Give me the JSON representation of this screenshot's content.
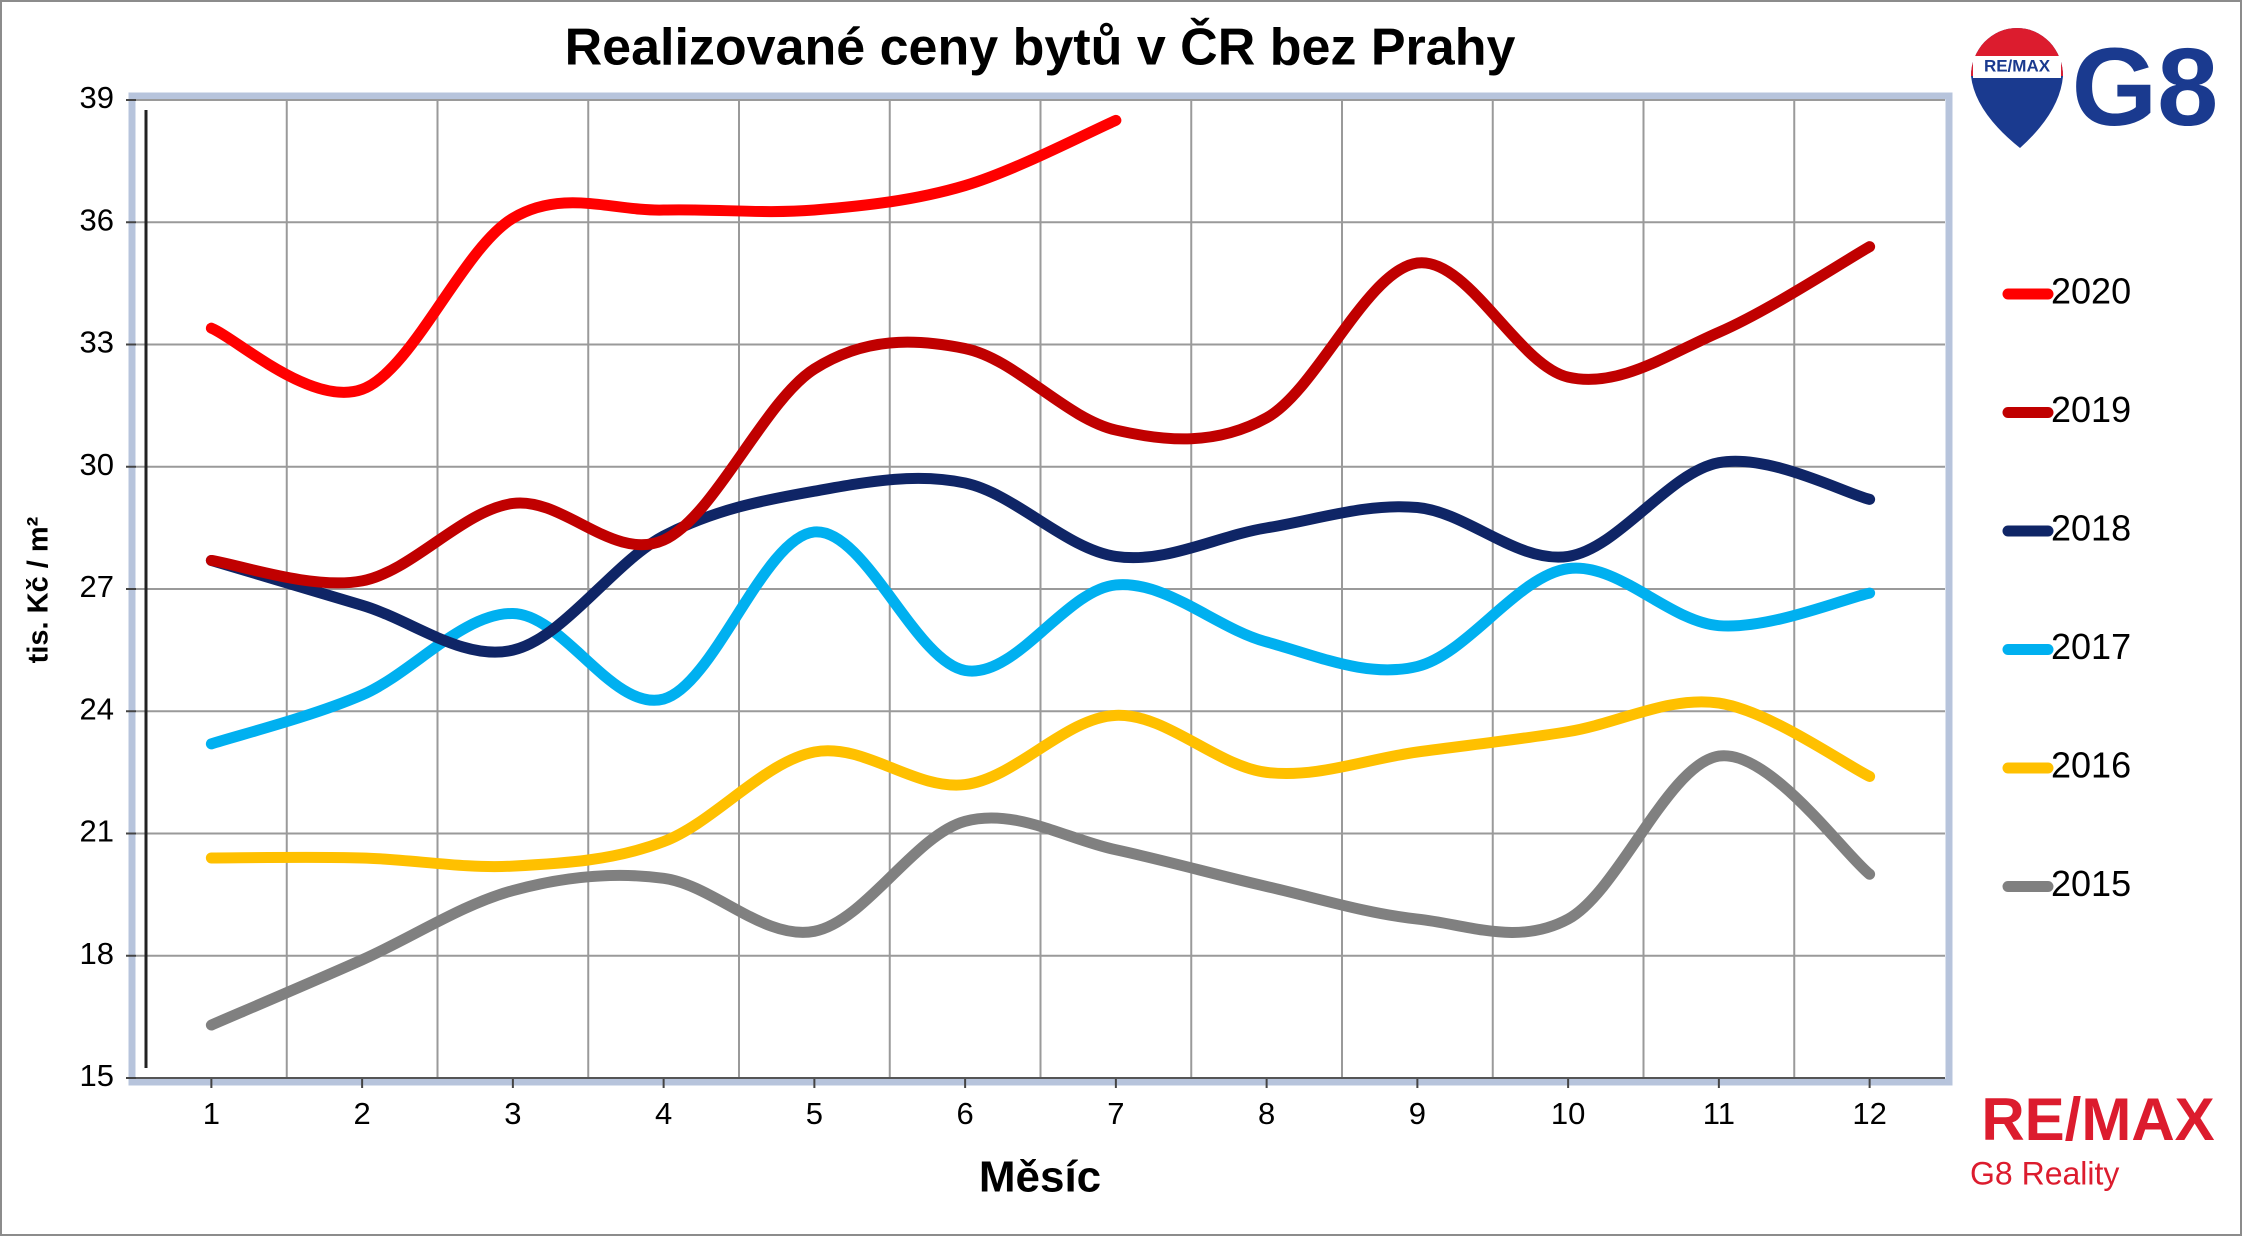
{
  "chart_data": {
    "type": "line",
    "title": "Realizované ceny bytů v ČR bez Prahy",
    "x_label": "Měsíc",
    "y_label": "tis. Kč / m²",
    "x": [
      1,
      2,
      3,
      4,
      5,
      6,
      7,
      8,
      9,
      10,
      11,
      12
    ],
    "xlim": [
      0.5,
      12.5
    ],
    "xticks": [
      1,
      2,
      3,
      4,
      5,
      6,
      7,
      8,
      9,
      10,
      11,
      12
    ],
    "ylim": [
      15,
      39
    ],
    "yticks": [
      15,
      18,
      21,
      24,
      27,
      30,
      33,
      36,
      39
    ],
    "grid": true,
    "smooth": true,
    "legend": "right",
    "series": [
      {
        "name": "2020",
        "color": "#ff0000",
        "values": [
          33.4,
          31.9,
          36.1,
          36.3,
          36.3,
          36.9,
          38.5,
          null,
          null,
          null,
          null,
          null
        ]
      },
      {
        "name": "2019",
        "color": "#c00000",
        "values": [
          27.7,
          27.2,
          29.1,
          28.2,
          32.4,
          32.9,
          30.9,
          31.2,
          35.0,
          32.2,
          33.3,
          35.4
        ]
      },
      {
        "name": "2018",
        "color": "#0f2566",
        "values": [
          27.7,
          26.6,
          25.5,
          28.3,
          29.4,
          29.6,
          27.8,
          28.5,
          29.0,
          27.8,
          30.1,
          29.2
        ]
      },
      {
        "name": "2017",
        "color": "#00b0f0",
        "values": [
          23.2,
          24.4,
          26.4,
          24.3,
          28.4,
          25.0,
          27.1,
          25.7,
          25.1,
          27.5,
          26.1,
          26.9
        ]
      },
      {
        "name": "2016",
        "color": "#ffc000",
        "values": [
          20.4,
          20.4,
          20.2,
          20.8,
          23.0,
          22.2,
          23.9,
          22.5,
          23.0,
          23.5,
          24.2,
          22.4
        ]
      },
      {
        "name": "2015",
        "color": "#808080",
        "values": [
          16.3,
          17.9,
          19.6,
          19.9,
          18.6,
          21.3,
          20.6,
          19.7,
          18.9,
          18.9,
          22.9,
          20.0
        ]
      }
    ]
  },
  "logos": {
    "balloon_text": "RE/MAX",
    "brand_top": "G8",
    "brand_bottom": "RE/MAX",
    "brand_sub": "G8 Reality"
  }
}
